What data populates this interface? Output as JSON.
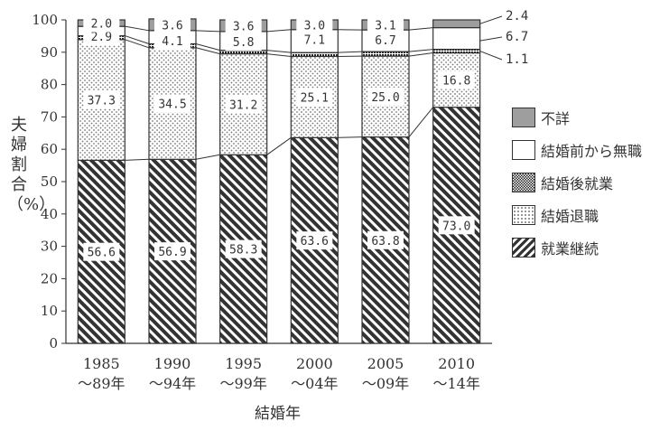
{
  "chart_data": {
    "type": "bar",
    "stacked": true,
    "percent": true,
    "title": "",
    "xlabel": "結婚年",
    "ylabel": "夫婦割合（%）",
    "ylim": [
      0,
      100
    ],
    "yticks": [
      0,
      10,
      20,
      30,
      40,
      50,
      60,
      70,
      80,
      90,
      100
    ],
    "categories": [
      "1985 〜89年",
      "1990 〜94年",
      "1995 〜99年",
      "2000 〜04年",
      "2005 〜09年",
      "2010 〜14年"
    ],
    "category_lines": [
      [
        "1985",
        "〜89年"
      ],
      [
        "1990",
        "〜94年"
      ],
      [
        "1995",
        "〜99年"
      ],
      [
        "2000",
        "〜04年"
      ],
      [
        "2005",
        "〜09年"
      ],
      [
        "2010",
        "〜14年"
      ]
    ],
    "series": [
      {
        "name": "就業継続",
        "values": [
          56.6,
          56.9,
          58.3,
          63.6,
          63.8,
          73.0
        ],
        "labels": [
          "56.6",
          "56.9",
          "58.3",
          "63.6",
          "63.8",
          "73.0"
        ]
      },
      {
        "name": "結婚退職",
        "values": [
          37.3,
          34.5,
          31.2,
          25.1,
          25.0,
          16.8
        ],
        "labels": [
          "37.3",
          "34.5",
          "31.2",
          "25.1",
          "25.0",
          "16.8"
        ]
      },
      {
        "name": "結婚後就業",
        "values": [
          1.2,
          1.2,
          1.1,
          1.2,
          1.4,
          1.1
        ],
        "labels": [
          "",
          "",
          "",
          "",
          "",
          ""
        ]
      },
      {
        "name": "結婚前から無職",
        "values": [
          2.9,
          4.1,
          5.8,
          7.1,
          6.7,
          6.7
        ],
        "labels": [
          "2.9",
          "4.1",
          "5.8",
          "7.1",
          "6.7",
          ""
        ]
      },
      {
        "name": "不詳",
        "values": [
          2.0,
          3.6,
          3.6,
          3.0,
          3.1,
          2.4
        ],
        "labels": [
          "2.0",
          "3.6",
          "3.6",
          "3.0",
          "3.1",
          ""
        ]
      }
    ],
    "right_labels": [
      {
        "series": "不詳",
        "text": "2.4"
      },
      {
        "series": "結婚前から無職",
        "text": "6.7"
      },
      {
        "series": "結婚後就業",
        "text": "1.1"
      }
    ],
    "legend": {
      "placement": "right",
      "items": [
        "不詳",
        "結婚前から無職",
        "結婚後就業",
        "結婚退職",
        "就業継続"
      ]
    },
    "connector_lines": true
  },
  "colors": {
    "就業継続": "#333333",
    "結婚退職": "#777777",
    "結婚後就業": "#222222",
    "結婚前から無職": "#ffffff",
    "不詳": "#9e9e9e"
  }
}
